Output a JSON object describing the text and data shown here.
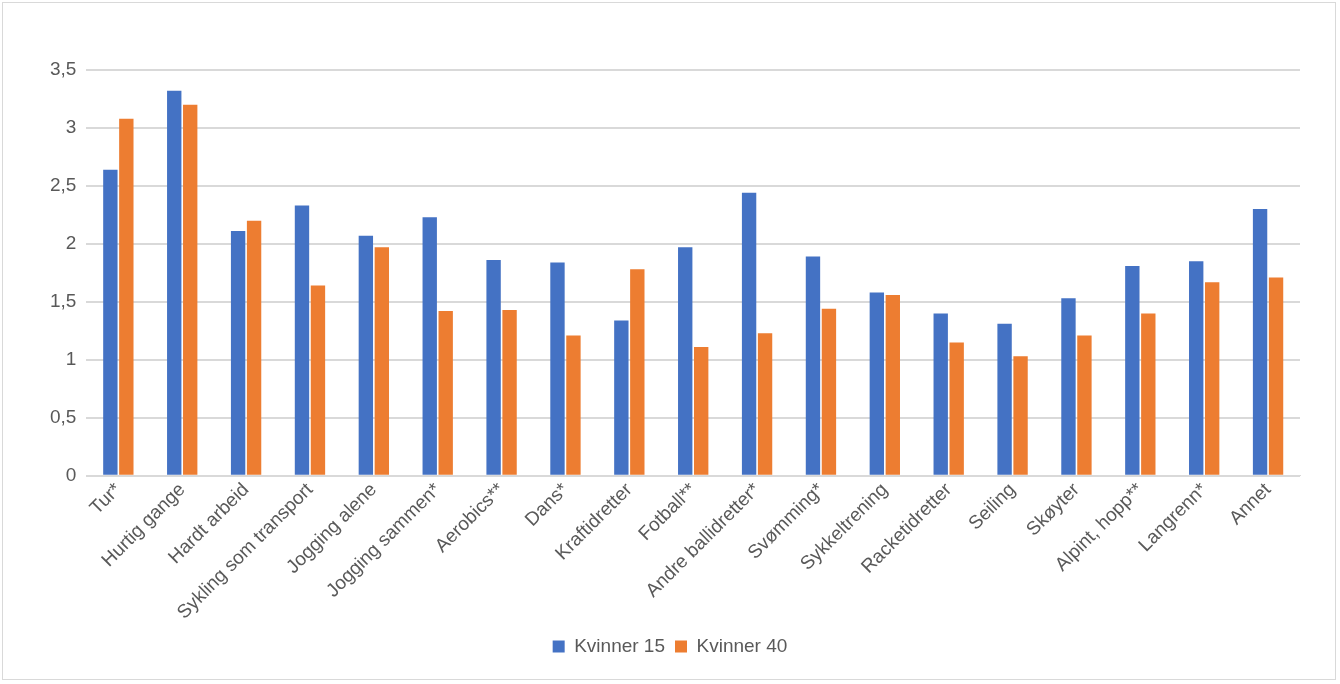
{
  "chart_data": {
    "type": "bar",
    "categories": [
      "Tur*",
      "Hurtig gange",
      "Hardt arbeid",
      "Sykling som transport",
      "Jogging alene",
      "Jogging sammen*",
      "Aerobics**",
      "Dans*",
      "Kraftidretter",
      "Fotball**",
      "Andre ballidretter*",
      "Svømming*",
      "Sykkeltrening",
      "Racketidretter",
      "Seiling",
      "Skøyter",
      "Alpint, hopp**",
      "Langrenn*",
      "Annet"
    ],
    "series": [
      {
        "name": "Kvinner 15",
        "color": "#4472c4",
        "values": [
          2.64,
          3.32,
          2.11,
          2.33,
          2.07,
          2.23,
          1.86,
          1.84,
          1.34,
          1.97,
          2.44,
          1.89,
          1.58,
          1.4,
          1.31,
          1.53,
          1.81,
          1.85,
          2.3
        ]
      },
      {
        "name": "Kvinner 40",
        "color": "#ed7d31",
        "values": [
          3.08,
          3.2,
          2.2,
          1.64,
          1.97,
          1.42,
          1.43,
          1.21,
          1.78,
          1.11,
          1.23,
          1.44,
          1.56,
          1.15,
          1.03,
          1.21,
          1.4,
          1.67,
          1.71
        ]
      }
    ],
    "ylim": [
      0,
      3.5
    ],
    "yticks": [
      0,
      {
        "value": 0.5,
        "label": "0,5"
      },
      1,
      {
        "value": 1.5,
        "label": "1,5"
      },
      2,
      {
        "value": 2.5,
        "label": "2,5"
      },
      3,
      {
        "value": 3.5,
        "label": "3,5"
      }
    ],
    "grid": "y",
    "legend": "bottom"
  }
}
